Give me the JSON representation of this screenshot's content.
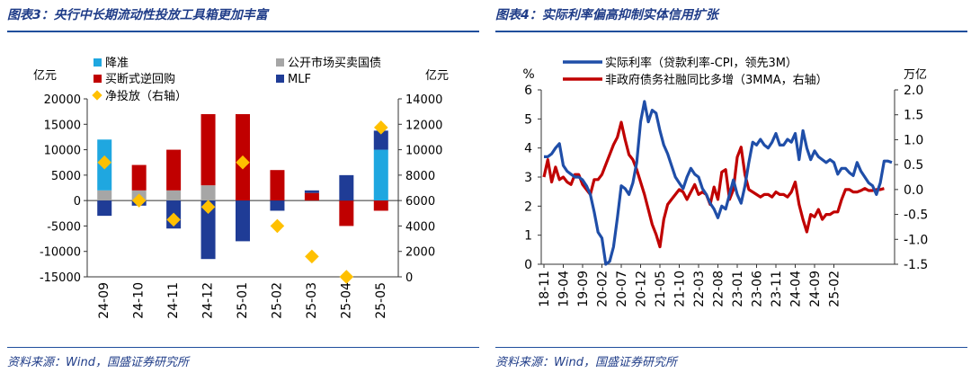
{
  "left": {
    "title": "图表3：央行中长期流动性投放工具箱更加丰富",
    "source": "资料来源：Wind，国盛证券研究所",
    "yl_unit": "亿元",
    "yr_unit": "亿元",
    "legend": {
      "jiangzhun": "降准",
      "gongkai": "公开市场买卖国债",
      "maiduan": "买断式逆回购",
      "mlf": "MLF",
      "jingtoufang": "净投放（右轴）"
    },
    "colors": {
      "jiangzhun": "#1fa7e0",
      "gongkai": "#a6a6a6",
      "maiduan": "#c00000",
      "mlf": "#1f3c96",
      "jingtoufang": "#ffc000"
    }
  },
  "right": {
    "title": "图表4：实际利率偏高抑制实体信用扩张",
    "source": "资料来源：Wind，国盛证券研究所",
    "yl_unit": "%",
    "yr_unit": "万亿",
    "legend": {
      "s1": "实际利率（贷款利率-CPI，领先3M）",
      "s2": "非政府债务社融同比多增（3MMA，右轴）"
    },
    "colors": {
      "s1": "#1f4ea8",
      "s2": "#c00000"
    }
  },
  "chart_data": [
    {
      "type": "bar",
      "stacked": true,
      "categories": [
        "24-09",
        "24-10",
        "24-11",
        "24-12",
        "25-01",
        "25-02",
        "25-03",
        "25-04",
        "25-05"
      ],
      "ylim": [
        -15000,
        20000
      ],
      "yticks": [
        -15000,
        -10000,
        -5000,
        0,
        5000,
        10000,
        15000,
        20000
      ],
      "y2lim": [
        0,
        14000
      ],
      "y2ticks": [
        0,
        2000,
        4000,
        6000,
        8000,
        10000,
        12000,
        14000
      ],
      "series": [
        {
          "name": "降准",
          "values": [
            10000,
            0,
            0,
            0,
            0,
            0,
            0,
            0,
            10000
          ]
        },
        {
          "name": "公开市场买卖国债",
          "values": [
            2000,
            2000,
            2000,
            3000,
            0,
            0,
            0,
            0,
            0
          ]
        },
        {
          "name": "买断式逆回购",
          "values": [
            0,
            5000,
            8000,
            14000,
            17000,
            6000,
            1500,
            -5000,
            -2000
          ]
        },
        {
          "name": "MLF",
          "values": [
            -3000,
            -1000,
            -5500,
            -11500,
            -8000,
            -2000,
            500,
            5000,
            3750
          ]
        },
        {
          "name": "净投放（右轴）",
          "axis": "right",
          "values": [
            9000,
            6000,
            4500,
            5500,
            9000,
            4000,
            1600,
            0,
            11750
          ]
        }
      ]
    },
    {
      "type": "line",
      "x_tick_labels": [
        "18-11",
        "19-04",
        "19-09",
        "20-02",
        "20-07",
        "20-12",
        "21-05",
        "21-10",
        "22-03",
        "22-08",
        "23-01",
        "23-06",
        "23-11",
        "24-04",
        "24-09",
        "25-02"
      ],
      "x_range": [
        "2018-11",
        "2025-05"
      ],
      "ylim": [
        0,
        6
      ],
      "yticks": [
        0,
        1,
        2,
        3,
        4,
        5,
        6
      ],
      "y2lim": [
        -1.5,
        2.0
      ],
      "y2ticks": [
        -1.5,
        -1.0,
        -0.5,
        0.0,
        0.5,
        1.0,
        1.5,
        2.0
      ],
      "series": [
        {
          "name": "实际利率（贷款利率-CPI，领先3M）",
          "axis": "left",
          "values": [
            3.7,
            3.7,
            3.8,
            4.0,
            4.15,
            3.4,
            3.2,
            3.1,
            3.0,
            3.0,
            2.9,
            2.7,
            2.4,
            1.8,
            1.1,
            0.9,
            0.0,
            0.1,
            0.6,
            1.6,
            2.7,
            2.6,
            2.4,
            2.8,
            3.5,
            4.9,
            5.6,
            4.9,
            5.3,
            5.2,
            4.6,
            4.1,
            3.8,
            3.4,
            3.0,
            2.8,
            2.6,
            3.0,
            3.3,
            3.1,
            3.0,
            2.6,
            2.4,
            2.1,
            1.9,
            1.6,
            2.0,
            1.9,
            2.4,
            2.9,
            2.4,
            2.1,
            2.7,
            3.5,
            4.2,
            4.1,
            4.3,
            4.1,
            4.0,
            4.2,
            4.5,
            4.1,
            4.1,
            4.3,
            4.2,
            4.5,
            3.6,
            4.6,
            4.0,
            3.6,
            3.9,
            3.7,
            3.6,
            3.5,
            3.6,
            3.5,
            3.1,
            3.3,
            3.3,
            3.15,
            3.05,
            3.5,
            3.2,
            3.0,
            2.8,
            2.7,
            2.4,
            2.8,
            3.55,
            3.55,
            3.5
          ]
        },
        {
          "name": "非政府债务社融同比多增（3MMA，右轴）",
          "axis": "right",
          "values": [
            0.25,
            0.6,
            0.15,
            0.45,
            0.2,
            0.25,
            0.15,
            0.1,
            0.3,
            0.3,
            0.1,
            0.0,
            -0.1,
            0.2,
            0.2,
            0.3,
            0.5,
            0.7,
            0.9,
            1.05,
            1.35,
            1.0,
            0.7,
            0.6,
            0.4,
            0.15,
            -0.1,
            -0.4,
            -0.7,
            -0.9,
            -1.15,
            -0.6,
            -0.3,
            -0.2,
            -0.1,
            0.0,
            -0.05,
            -0.2,
            -0.05,
            0.1,
            -0.1,
            -0.05,
            -0.1,
            -0.3,
            0.05,
            -0.2,
            0.35,
            0.4,
            -0.2,
            0.0,
            0.65,
            0.85,
            0.3,
            0.0,
            -0.05,
            -0.1,
            -0.15,
            -0.1,
            -0.1,
            -0.15,
            -0.05,
            -0.1,
            -0.1,
            -0.15,
            -0.05,
            0.15,
            -0.3,
            -0.6,
            -0.85,
            -0.5,
            -0.55,
            -0.4,
            -0.6,
            -0.5,
            -0.5,
            -0.45,
            -0.45,
            -0.2,
            -0.0,
            0.0,
            -0.05,
            -0.05,
            -0.02,
            0.02,
            -0.02,
            -0.02,
            0.0,
            0.0,
            0.02
          ]
        }
      ]
    }
  ]
}
